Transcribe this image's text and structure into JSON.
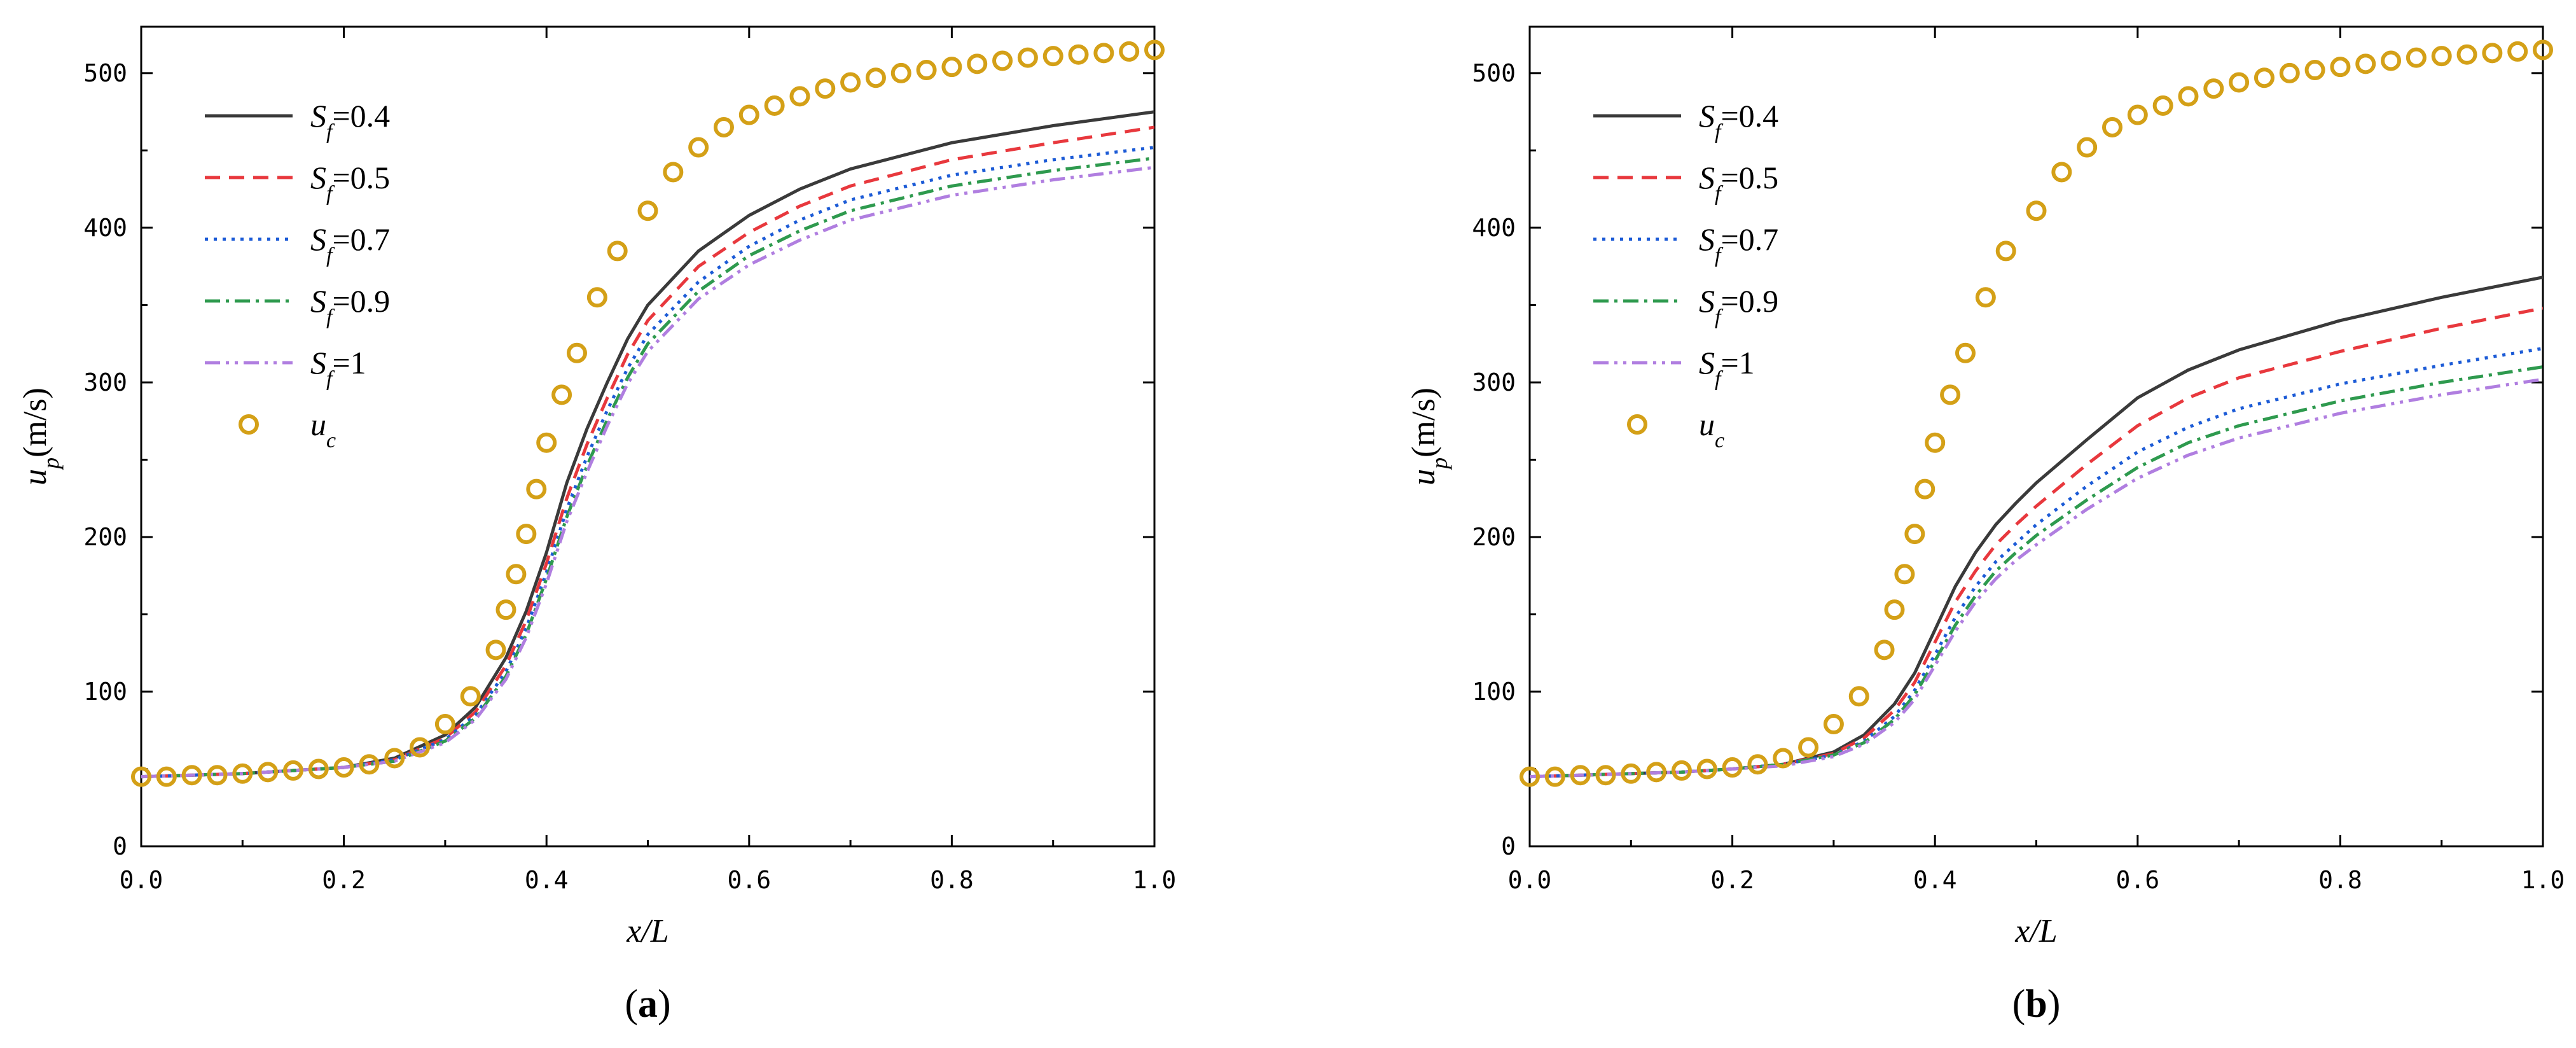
{
  "chart_data": [
    {
      "type": "line",
      "panel": "a",
      "caption": {
        "open": "(",
        "letter": "a",
        "close": ")"
      },
      "xlabel": "x/L",
      "ylabel": {
        "var": "u",
        "sub": "p",
        "unit": "(m/s)"
      },
      "xlim": [
        0,
        1
      ],
      "ylim": [
        0,
        530
      ],
      "xticks": [
        0,
        0.2,
        0.4,
        0.6,
        0.8,
        1.0
      ],
      "xtick_labels": [
        "0.0",
        "0.2",
        "0.4",
        "0.6",
        "0.8",
        "1.0"
      ],
      "yticks": [
        0,
        100,
        200,
        300,
        400,
        500
      ],
      "ytick_labels": [
        "0",
        "100",
        "200",
        "300",
        "400",
        "500"
      ],
      "legend_position": "top-left",
      "x": [
        0,
        0.05,
        0.1,
        0.15,
        0.2,
        0.25,
        0.3,
        0.33,
        0.36,
        0.38,
        0.4,
        0.42,
        0.44,
        0.46,
        0.48,
        0.5,
        0.55,
        0.6,
        0.65,
        0.7,
        0.8,
        0.9,
        1.0
      ],
      "series": [
        {
          "name": "Sf=0.4",
          "sym": "S",
          "sub": "f",
          "eq": "=0.4",
          "color": "#3a3a3a",
          "dash": "none",
          "values": [
            45,
            46,
            47,
            49,
            51,
            57,
            72,
            90,
            122,
            152,
            190,
            235,
            270,
            300,
            328,
            350,
            385,
            408,
            425,
            438,
            455,
            466,
            475
          ]
        },
        {
          "name": "Sf=0.5",
          "sym": "S",
          "sub": "f",
          "eq": "=0.5",
          "color": "#e8383d",
          "dash": "24,14",
          "values": [
            45,
            46,
            47,
            49,
            51,
            56,
            70,
            87,
            117,
            146,
            183,
            225,
            260,
            290,
            318,
            340,
            375,
            397,
            414,
            427,
            444,
            455,
            465
          ]
        },
        {
          "name": "Sf=0.7",
          "sym": "S",
          "sub": "f",
          "eq": "=0.7",
          "color": "#1c5bd6",
          "dash": "5,9",
          "values": [
            45,
            46,
            47,
            49,
            51,
            56,
            69,
            85,
            113,
            141,
            177,
            218,
            252,
            282,
            309,
            331,
            365,
            388,
            405,
            418,
            434,
            444,
            452
          ]
        },
        {
          "name": "Sf=0.9",
          "sym": "S",
          "sub": "f",
          "eq": "=0.9",
          "color": "#2e9a4e",
          "dash": "24,9,5,9",
          "values": [
            45,
            46,
            47,
            49,
            51,
            55,
            68,
            83,
            110,
            137,
            173,
            213,
            246,
            276,
            303,
            325,
            359,
            382,
            398,
            411,
            427,
            437,
            445
          ]
        },
        {
          "name": "Sf=1",
          "sym": "S",
          "sub": "f",
          "eq": "=1",
          "color": "#b07ee0",
          "dash": "24,9,5,9,5,9",
          "values": [
            45,
            46,
            47,
            49,
            51,
            55,
            67,
            82,
            108,
            135,
            170,
            210,
            242,
            272,
            299,
            320,
            354,
            376,
            392,
            405,
            421,
            431,
            439
          ]
        }
      ],
      "markers": {
        "name": "uc",
        "sym": "u",
        "sub": "c",
        "color": "#d4a017",
        "x": [
          0,
          0.025,
          0.05,
          0.075,
          0.1,
          0.125,
          0.15,
          0.175,
          0.2,
          0.225,
          0.25,
          0.275,
          0.3,
          0.325,
          0.35,
          0.36,
          0.37,
          0.38,
          0.39,
          0.4,
          0.415,
          0.43,
          0.45,
          0.47,
          0.5,
          0.525,
          0.55,
          0.575,
          0.6,
          0.625,
          0.65,
          0.675,
          0.7,
          0.725,
          0.75,
          0.775,
          0.8,
          0.825,
          0.85,
          0.875,
          0.9,
          0.925,
          0.95,
          0.975,
          1.0
        ],
        "values": [
          45,
          45,
          46,
          46,
          47,
          48,
          49,
          50,
          51,
          53,
          57,
          64,
          79,
          97,
          127,
          153,
          176,
          202,
          231,
          261,
          292,
          319,
          355,
          385,
          411,
          436,
          452,
          465,
          473,
          479,
          485,
          490,
          494,
          497,
          500,
          502,
          504,
          506,
          508,
          510,
          511,
          512,
          513,
          514,
          515
        ]
      }
    },
    {
      "type": "line",
      "panel": "b",
      "caption": {
        "open": "(",
        "letter": "b",
        "close": ")"
      },
      "xlabel": "x/L",
      "ylabel": {
        "var": "u",
        "sub": "p",
        "unit": "(m/s)"
      },
      "xlim": [
        0,
        1
      ],
      "ylim": [
        0,
        530
      ],
      "xticks": [
        0,
        0.2,
        0.4,
        0.6,
        0.8,
        1.0
      ],
      "xtick_labels": [
        "0.0",
        "0.2",
        "0.4",
        "0.6",
        "0.8",
        "1.0"
      ],
      "yticks": [
        0,
        100,
        200,
        300,
        400,
        500
      ],
      "ytick_labels": [
        "0",
        "100",
        "200",
        "300",
        "400",
        "500"
      ],
      "legend_position": "top-left",
      "x": [
        0,
        0.05,
        0.1,
        0.15,
        0.2,
        0.25,
        0.3,
        0.33,
        0.36,
        0.38,
        0.4,
        0.42,
        0.44,
        0.46,
        0.48,
        0.5,
        0.55,
        0.6,
        0.65,
        0.7,
        0.8,
        0.9,
        1.0
      ],
      "series": [
        {
          "name": "Sf=0.4",
          "sym": "S",
          "sub": "f",
          "eq": "=0.4",
          "color": "#3a3a3a",
          "dash": "none",
          "values": [
            45,
            46,
            47,
            48,
            50,
            53,
            61,
            72,
            92,
            112,
            140,
            168,
            190,
            208,
            222,
            235,
            263,
            290,
            308,
            321,
            340,
            355,
            368
          ]
        },
        {
          "name": "Sf=0.5",
          "sym": "S",
          "sub": "f",
          "eq": "=0.5",
          "color": "#e8383d",
          "dash": "24,14",
          "values": [
            45,
            46,
            47,
            48,
            50,
            53,
            60,
            70,
            88,
            106,
            132,
            158,
            178,
            195,
            208,
            220,
            247,
            272,
            290,
            303,
            320,
            335,
            348
          ]
        },
        {
          "name": "Sf=0.7",
          "sym": "S",
          "sub": "f",
          "eq": "=0.7",
          "color": "#1c5bd6",
          "dash": "5,9",
          "values": [
            45,
            46,
            47,
            48,
            50,
            53,
            59,
            68,
            84,
            101,
            124,
            148,
            168,
            184,
            196,
            208,
            233,
            255,
            271,
            283,
            299,
            311,
            322
          ]
        },
        {
          "name": "Sf=0.9",
          "sym": "S",
          "sub": "f",
          "eq": "=0.9",
          "color": "#2e9a4e",
          "dash": "24,9,5,9",
          "values": [
            45,
            46,
            47,
            48,
            50,
            53,
            59,
            67,
            82,
            98,
            120,
            143,
            162,
            178,
            190,
            201,
            224,
            245,
            261,
            272,
            288,
            300,
            310
          ]
        },
        {
          "name": "Sf=1",
          "sym": "S",
          "sub": "f",
          "eq": "=1",
          "color": "#b07ee0",
          "dash": "24,9,5,9,5,9",
          "values": [
            45,
            46,
            47,
            48,
            50,
            52,
            58,
            66,
            80,
            95,
            117,
            139,
            158,
            173,
            185,
            195,
            218,
            238,
            253,
            264,
            280,
            292,
            302
          ]
        }
      ],
      "markers": {
        "name": "uc",
        "sym": "u",
        "sub": "c",
        "color": "#d4a017",
        "x": [
          0,
          0.025,
          0.05,
          0.075,
          0.1,
          0.125,
          0.15,
          0.175,
          0.2,
          0.225,
          0.25,
          0.275,
          0.3,
          0.325,
          0.35,
          0.36,
          0.37,
          0.38,
          0.39,
          0.4,
          0.415,
          0.43,
          0.45,
          0.47,
          0.5,
          0.525,
          0.55,
          0.575,
          0.6,
          0.625,
          0.65,
          0.675,
          0.7,
          0.725,
          0.75,
          0.775,
          0.8,
          0.825,
          0.85,
          0.875,
          0.9,
          0.925,
          0.95,
          0.975,
          1.0
        ],
        "values": [
          45,
          45,
          46,
          46,
          47,
          48,
          49,
          50,
          51,
          53,
          57,
          64,
          79,
          97,
          127,
          153,
          176,
          202,
          231,
          261,
          292,
          319,
          355,
          385,
          411,
          436,
          452,
          465,
          473,
          479,
          485,
          490,
          494,
          497,
          500,
          502,
          504,
          506,
          508,
          510,
          511,
          512,
          513,
          514,
          515
        ]
      }
    }
  ]
}
